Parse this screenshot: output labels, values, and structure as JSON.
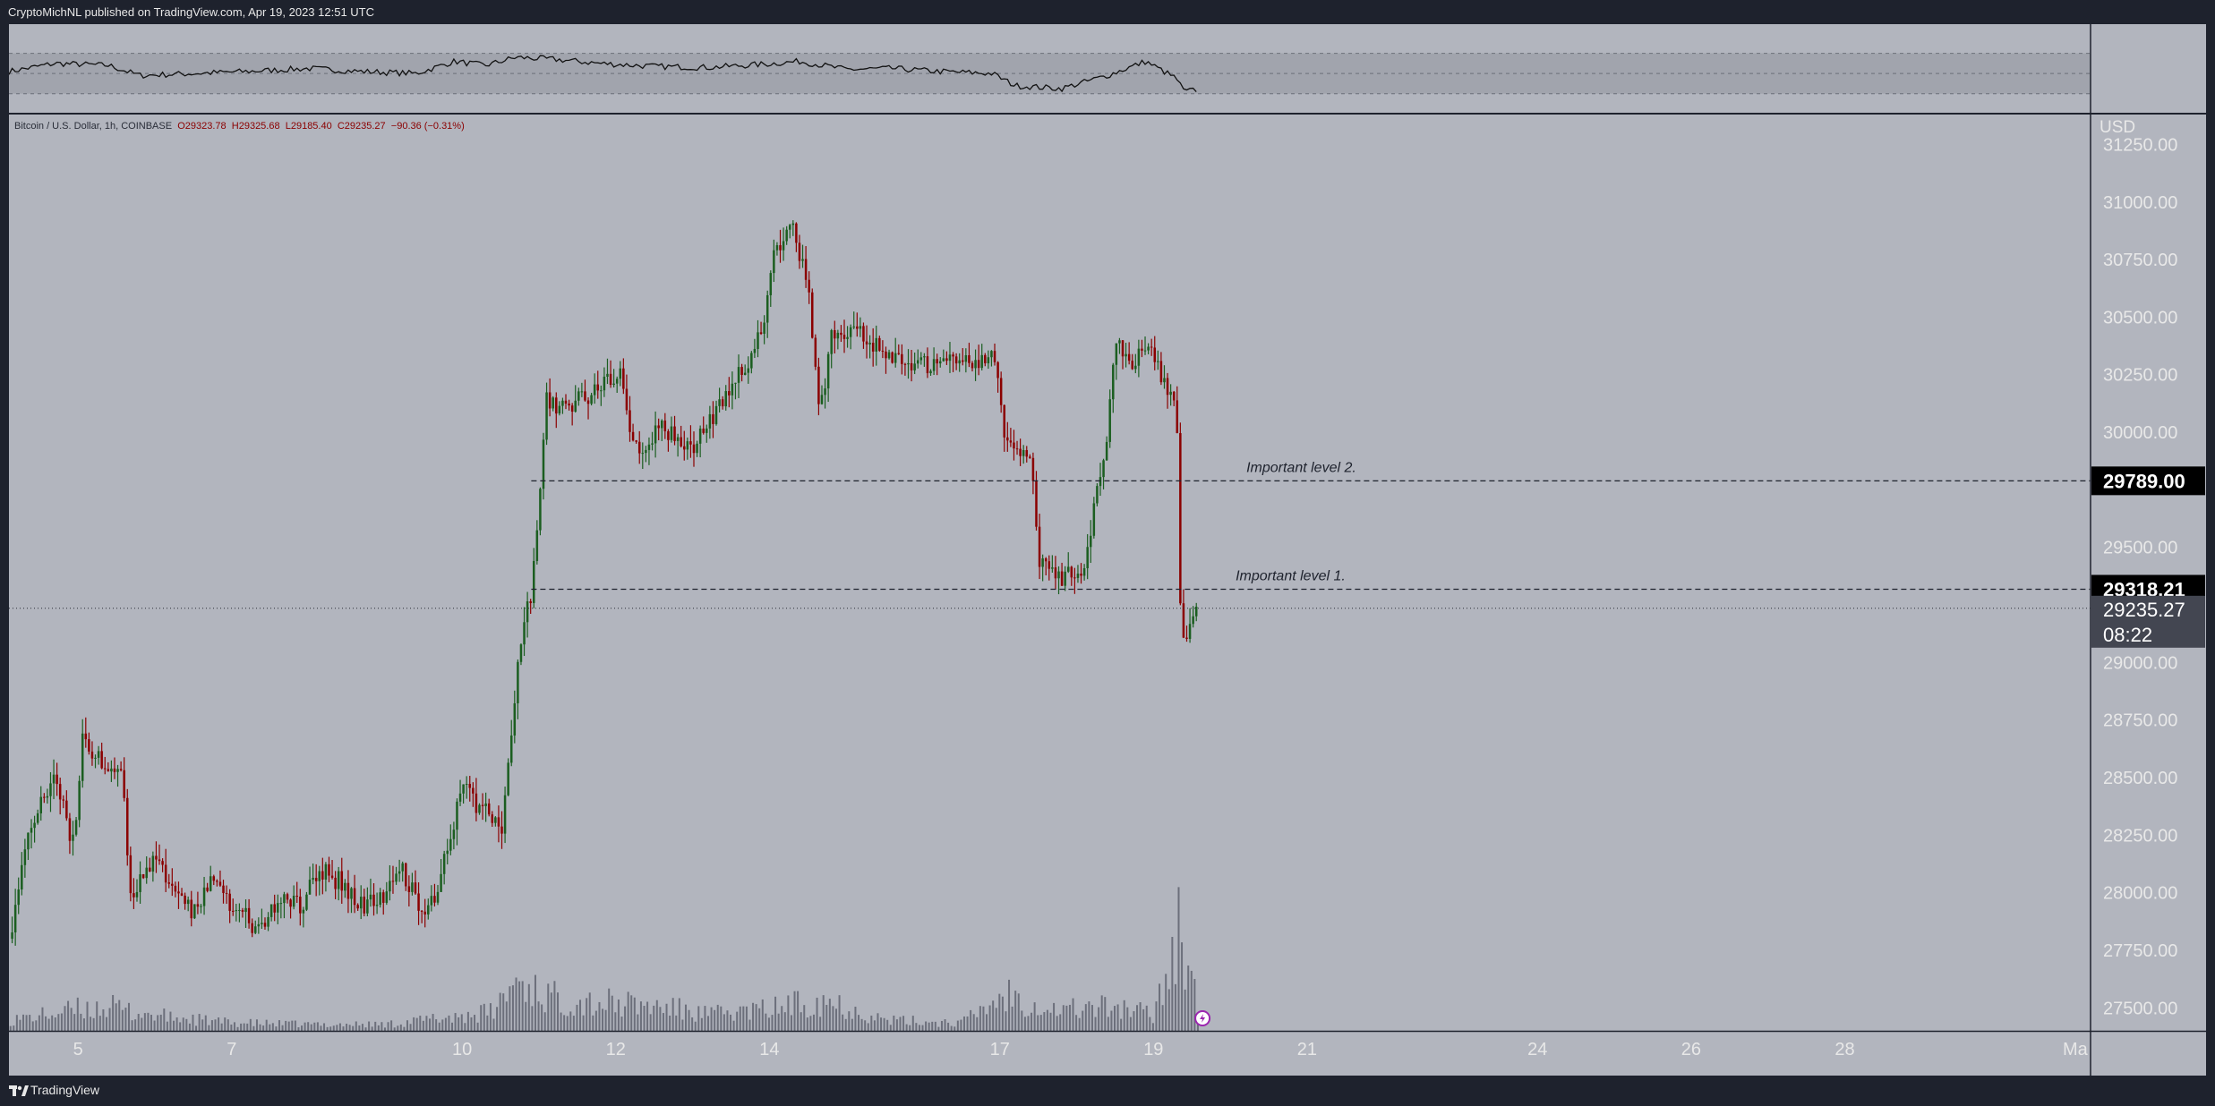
{
  "header": {
    "publisher_line": "CryptoMichNL published on TradingView.com, Apr 19, 2023 12:51 UTC"
  },
  "footer": {
    "brand": "TradingView"
  },
  "colors": {
    "panel_bg": "#b2b5be",
    "frame_bg": "#1e222d",
    "up_candle": "#1b5e20",
    "down_candle": "#8b0000",
    "volume_bar": "#5f6370",
    "rsi_line": "#111111",
    "level_label_bg": "#000000",
    "price_label_bg": "#434651"
  },
  "chart_data": {
    "type": "candlestick",
    "symbol_line": {
      "name": "Bitcoin / U.S. Dollar, 1h, COINBASE",
      "open": "O29323.78",
      "high": "H29325.68",
      "low": "L29185.40",
      "close": "C29235.27",
      "change": "−90.36 (−0.31%)"
    },
    "currency": "USD",
    "y_ticks": [
      "31250.00",
      "31000.00",
      "30750.00",
      "30500.00",
      "30250.00",
      "30000.00",
      "29500.00",
      "29000.00",
      "28750.00",
      "28500.00",
      "28250.00",
      "28000.00",
      "27750.00",
      "27500.00"
    ],
    "y_range": [
      27400,
      31380
    ],
    "x_ticks": [
      "5",
      "7",
      "10",
      "12",
      "14",
      "17",
      "19",
      "21",
      "24",
      "26",
      "28",
      "Ma"
    ],
    "x_tick_days": [
      5,
      7,
      10,
      12,
      14,
      17,
      19,
      21,
      24,
      26,
      28,
      31
    ],
    "x_range_days": [
      4.1,
      31.2
    ],
    "horizontal_levels": [
      {
        "label": "Important level 2.",
        "price": 29789.0,
        "price_label": "29789.00"
      },
      {
        "label": "Important level 1.",
        "price": 29318.21,
        "price_label": "29318.21"
      }
    ],
    "last_price": {
      "price": 29235.27,
      "label": "29235.27",
      "countdown": "08:22"
    },
    "price_path": [
      [
        4.1,
        27800
      ],
      [
        4.4,
        28300
      ],
      [
        4.7,
        28500
      ],
      [
        4.95,
        28200
      ],
      [
        5.05,
        28650
      ],
      [
        5.4,
        28550
      ],
      [
        5.55,
        28580
      ],
      [
        5.7,
        27950
      ],
      [
        5.95,
        28150
      ],
      [
        6.2,
        28050
      ],
      [
        6.5,
        27900
      ],
      [
        6.7,
        28050
      ],
      [
        7.0,
        27950
      ],
      [
        7.3,
        27850
      ],
      [
        7.6,
        27950
      ],
      [
        7.9,
        27950
      ],
      [
        8.15,
        28100
      ],
      [
        8.4,
        28050
      ],
      [
        8.7,
        27950
      ],
      [
        9.0,
        28000
      ],
      [
        9.2,
        28100
      ],
      [
        9.45,
        27950
      ],
      [
        9.65,
        27950
      ],
      [
        9.85,
        28250
      ],
      [
        10.0,
        28450
      ],
      [
        10.3,
        28350
      ],
      [
        10.5,
        28250
      ],
      [
        10.62,
        28600
      ],
      [
        10.75,
        29100
      ],
      [
        10.9,
        29300
      ],
      [
        11.0,
        29700
      ],
      [
        11.1,
        30150
      ],
      [
        11.35,
        30100
      ],
      [
        11.6,
        30150
      ],
      [
        11.85,
        30200
      ],
      [
        12.05,
        30250
      ],
      [
        12.2,
        29950
      ],
      [
        12.45,
        29950
      ],
      [
        12.6,
        30050
      ],
      [
        12.8,
        29950
      ],
      [
        13.0,
        29900
      ],
      [
        13.2,
        30050
      ],
      [
        13.45,
        30150
      ],
      [
        13.7,
        30300
      ],
      [
        13.9,
        30450
      ],
      [
        14.05,
        30750
      ],
      [
        14.3,
        30900
      ],
      [
        14.5,
        30650
      ],
      [
        14.65,
        30050
      ],
      [
        14.8,
        30400
      ],
      [
        15.0,
        30450
      ],
      [
        15.3,
        30400
      ],
      [
        15.55,
        30350
      ],
      [
        15.85,
        30300
      ],
      [
        16.1,
        30300
      ],
      [
        16.4,
        30300
      ],
      [
        16.7,
        30300
      ],
      [
        16.95,
        30350
      ],
      [
        17.05,
        29950
      ],
      [
        17.2,
        29950
      ],
      [
        17.4,
        29900
      ],
      [
        17.5,
        29450
      ],
      [
        17.75,
        29350
      ],
      [
        17.9,
        29400
      ],
      [
        18.05,
        29350
      ],
      [
        18.25,
        29700
      ],
      [
        18.4,
        30000
      ],
      [
        18.5,
        30400
      ],
      [
        18.75,
        30300
      ],
      [
        18.9,
        30400
      ],
      [
        19.1,
        30250
      ],
      [
        19.3,
        30100
      ],
      [
        19.35,
        29250
      ],
      [
        19.4,
        29050
      ],
      [
        19.55,
        29250
      ],
      [
        19.58,
        29235
      ]
    ],
    "volume_profile": [
      [
        4.1,
        0.2
      ],
      [
        4.6,
        0.3
      ],
      [
        5.0,
        0.4
      ],
      [
        5.4,
        0.45
      ],
      [
        5.7,
        0.35
      ],
      [
        6.2,
        0.25
      ],
      [
        7.0,
        0.15
      ],
      [
        8.0,
        0.12
      ],
      [
        9.0,
        0.12
      ],
      [
        9.8,
        0.25
      ],
      [
        10.4,
        0.35
      ],
      [
        10.7,
        0.95
      ],
      [
        11.2,
        0.6
      ],
      [
        12.0,
        0.5
      ],
      [
        12.6,
        0.45
      ],
      [
        13.2,
        0.3
      ],
      [
        14.0,
        0.4
      ],
      [
        14.7,
        0.6
      ],
      [
        15.5,
        0.2
      ],
      [
        16.5,
        0.15
      ],
      [
        17.1,
        0.7
      ],
      [
        17.7,
        0.4
      ],
      [
        18.5,
        0.45
      ],
      [
        19.0,
        0.3
      ],
      [
        19.35,
        2.0
      ],
      [
        19.58,
        0.5
      ]
    ],
    "rsi_series": [
      [
        4.1,
        52
      ],
      [
        4.7,
        60
      ],
      [
        5.4,
        58
      ],
      [
        5.8,
        48
      ],
      [
        6.5,
        50
      ],
      [
        7.2,
        52
      ],
      [
        8.0,
        55
      ],
      [
        8.7,
        52
      ],
      [
        9.4,
        50
      ],
      [
        9.9,
        62
      ],
      [
        10.3,
        58
      ],
      [
        10.7,
        66
      ],
      [
        11.2,
        64
      ],
      [
        11.8,
        60
      ],
      [
        12.5,
        57
      ],
      [
        13.2,
        56
      ],
      [
        13.9,
        59
      ],
      [
        14.4,
        62
      ],
      [
        15.0,
        54
      ],
      [
        15.6,
        55
      ],
      [
        16.2,
        52
      ],
      [
        16.9,
        50
      ],
      [
        17.2,
        38
      ],
      [
        17.8,
        35
      ],
      [
        18.4,
        48
      ],
      [
        18.9,
        62
      ],
      [
        19.3,
        45
      ],
      [
        19.4,
        32
      ],
      [
        19.58,
        34
      ]
    ],
    "rsi_band": {
      "upper": 70,
      "lower": 30
    }
  }
}
